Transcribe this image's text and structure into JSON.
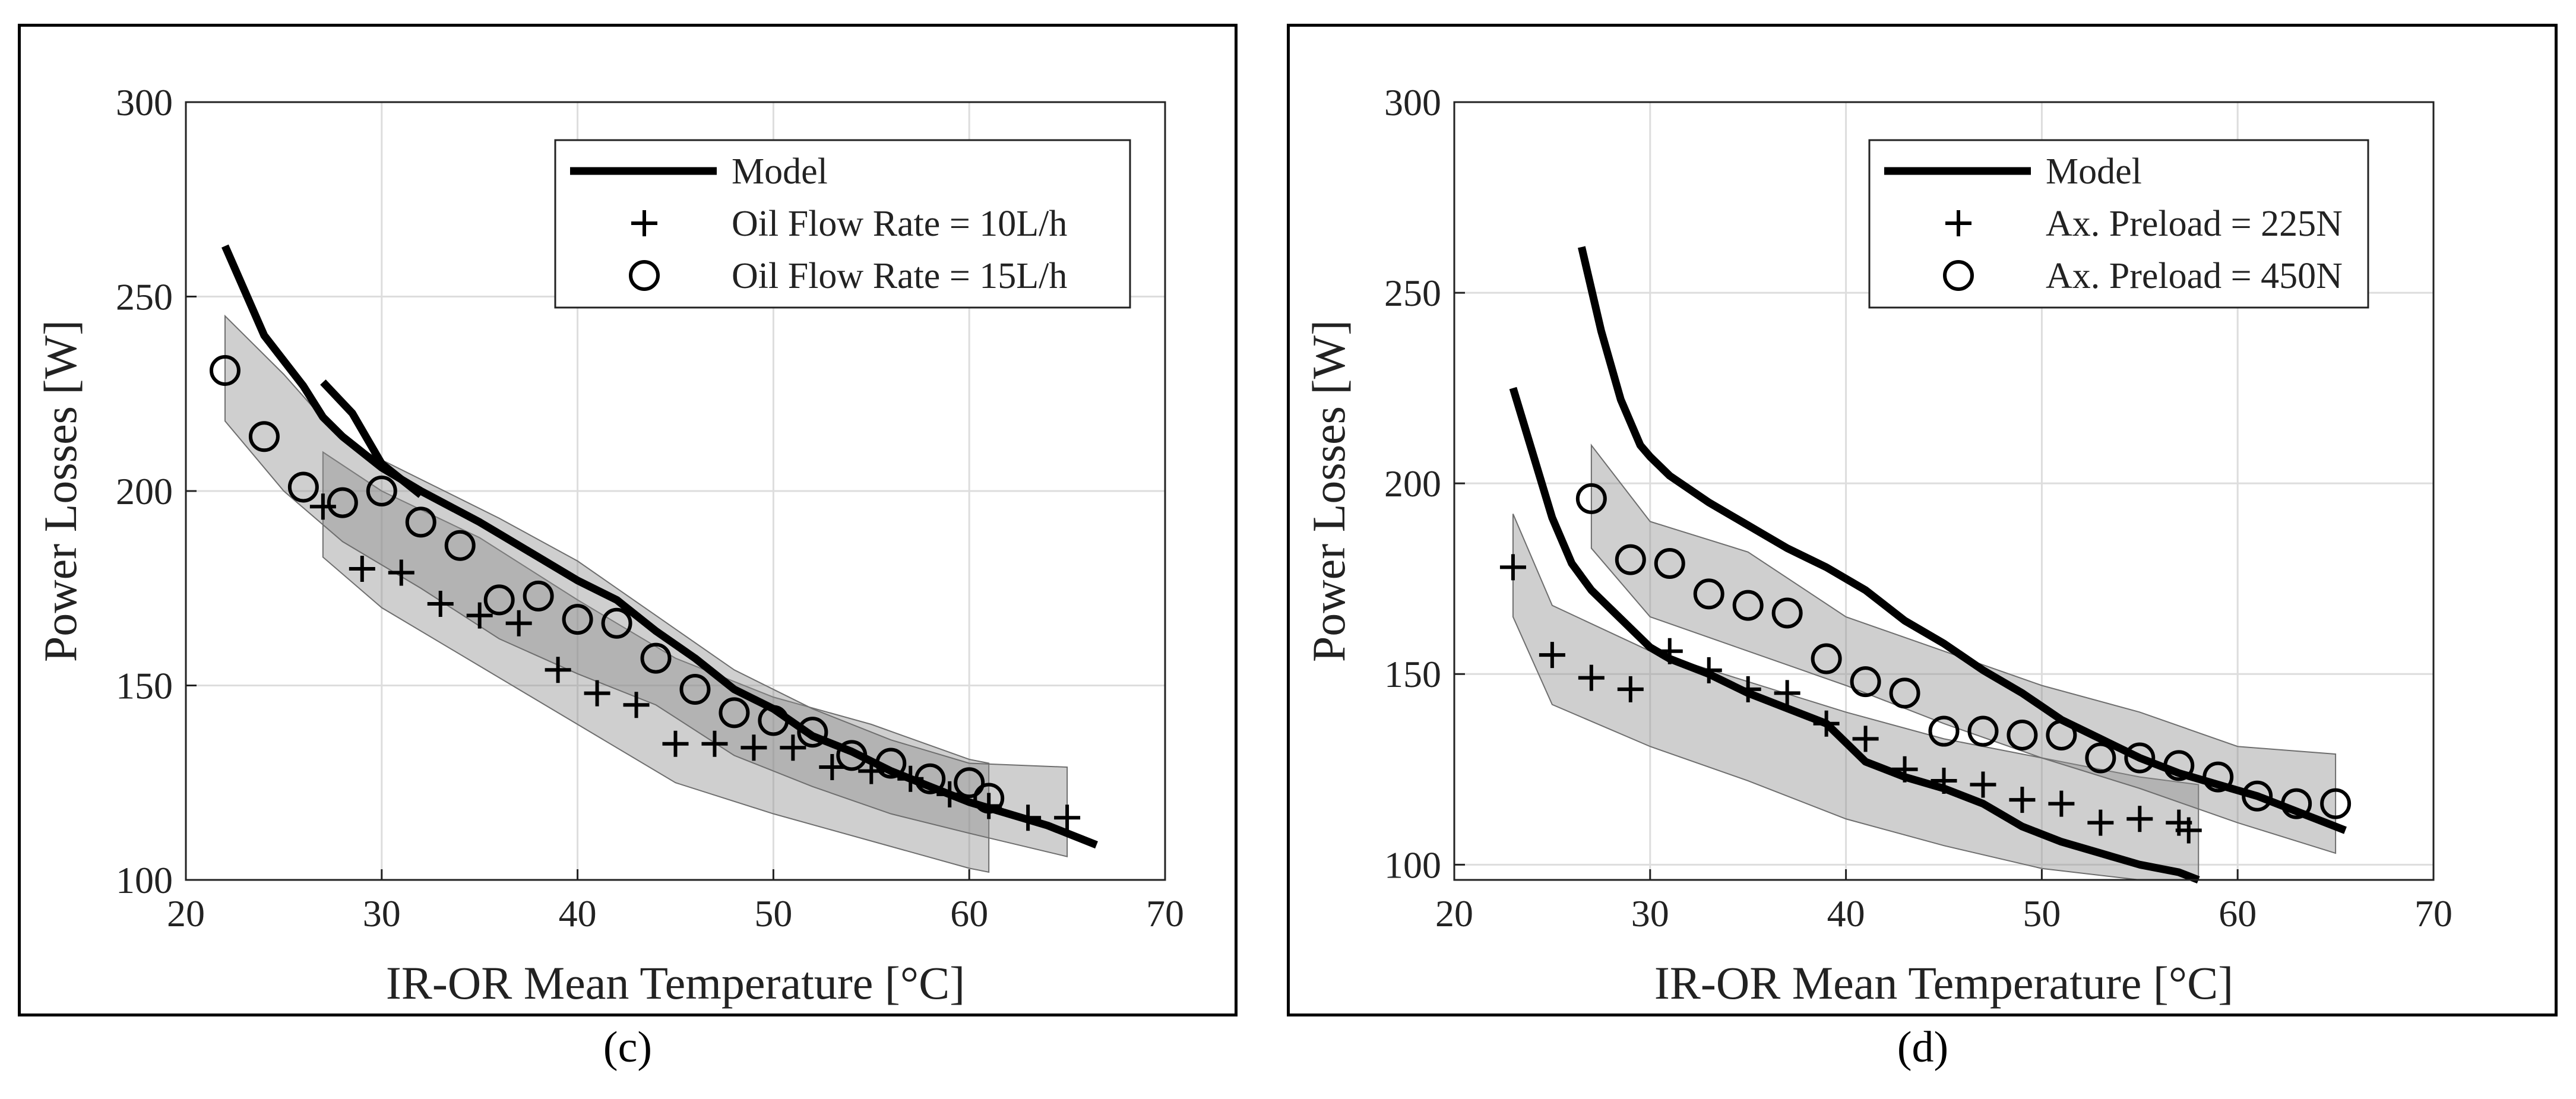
{
  "captions": {
    "c": "(c)",
    "d": "(d)"
  },
  "chart_data": [
    {
      "type": "line",
      "panel": "c",
      "xlabel": "IR-OR Mean Temperature [°C]",
      "ylabel": "Power Losses [W]",
      "xlim": [
        20,
        70
      ],
      "ylim": [
        100,
        300
      ],
      "xticks": [
        20,
        30,
        40,
        50,
        60,
        70
      ],
      "yticks": [
        100,
        150,
        200,
        250,
        300
      ],
      "grid": true,
      "legend_position": "top-right",
      "legend": [
        "Model",
        "Oil Flow Rate = 10L/h",
        "Oil Flow Rate = 15L/h"
      ],
      "bands": [
        {
          "name": "10L/h band",
          "x": [
            27,
            30,
            35,
            40,
            45,
            50,
            55,
            60,
            61
          ],
          "lower": [
            183,
            170,
            155,
            140,
            125,
            117,
            110,
            103,
            102
          ],
          "upper": [
            210,
            200,
            188,
            172,
            157,
            147,
            140,
            131,
            130
          ]
        },
        {
          "name": "15L/h band",
          "x": [
            22,
            25,
            28,
            32,
            36,
            40,
            44,
            48,
            52,
            56,
            60,
            65
          ],
          "lower": [
            218,
            200,
            187,
            175,
            162,
            153,
            145,
            132,
            124,
            117,
            112,
            106
          ],
          "upper": [
            245,
            230,
            213,
            203,
            193,
            182,
            168,
            154,
            144,
            136,
            130,
            129
          ]
        }
      ],
      "series": [
        {
          "name": "Model",
          "marker": "line",
          "x": [
            22,
            24,
            26,
            27,
            28,
            30,
            32,
            35,
            38,
            40,
            42,
            44,
            46,
            48,
            50,
            52,
            54,
            56,
            58,
            60,
            62,
            64,
            66.5
          ],
          "y": [
            263,
            240,
            227,
            219,
            214,
            206,
            200,
            192,
            183,
            177,
            172,
            164,
            157,
            149,
            144,
            137,
            133,
            128,
            124,
            120,
            117,
            114,
            109
          ]
        },
        {
          "name": "Model (10L/h)",
          "marker": "line",
          "x": [
            27,
            28.5,
            30,
            32
          ],
          "y": [
            228,
            220,
            207,
            199
          ]
        },
        {
          "name": "Oil Flow Rate = 10L/h",
          "marker": "+",
          "x": [
            27,
            29,
            31,
            33,
            35,
            37,
            39,
            41,
            43,
            45,
            47,
            49,
            51,
            53,
            55,
            57,
            59,
            61,
            63,
            65
          ],
          "y": [
            196,
            180,
            179,
            171,
            168,
            166,
            154,
            148,
            145,
            135,
            135,
            134,
            134,
            129,
            128,
            126,
            122,
            119,
            116,
            116
          ]
        },
        {
          "name": "Oil Flow Rate = 15L/h",
          "marker": "o",
          "x": [
            22,
            24,
            26,
            28,
            30,
            32,
            34,
            36,
            38,
            40,
            42,
            44,
            46,
            48,
            50,
            52,
            54,
            56,
            58,
            60,
            61
          ],
          "y": [
            231,
            214,
            201,
            197,
            200,
            192,
            186,
            172,
            173,
            167,
            166,
            157,
            149,
            143,
            141,
            138,
            132,
            130,
            126,
            125,
            121
          ]
        }
      ]
    },
    {
      "type": "line",
      "panel": "d",
      "xlabel": "IR-OR Mean Temperature [°C]",
      "ylabel": "Power Losses [W]",
      "xlim": [
        20,
        70
      ],
      "ylim": [
        96,
        300
      ],
      "xticks": [
        20,
        30,
        40,
        50,
        60,
        70
      ],
      "yticks": [
        100,
        150,
        200,
        250,
        300
      ],
      "grid": true,
      "legend_position": "top-right",
      "legend": [
        "Model",
        "Ax. Preload = 225N",
        "Ax. Preload = 450N"
      ],
      "bands": [
        {
          "name": "225N band",
          "x": [
            23,
            25,
            30,
            35,
            40,
            45,
            50,
            55,
            58
          ],
          "lower": [
            165,
            142,
            131,
            122,
            112,
            105,
            99,
            96,
            96
          ],
          "upper": [
            192,
            168,
            156,
            148,
            140,
            133,
            128,
            123,
            121
          ]
        },
        {
          "name": "450N band",
          "x": [
            27,
            30,
            35,
            40,
            45,
            50,
            55,
            60,
            65
          ],
          "lower": [
            183,
            165,
            156,
            147,
            137,
            128,
            120,
            111,
            103
          ],
          "upper": [
            210,
            190,
            182,
            165,
            156,
            147,
            140,
            131,
            129
          ]
        }
      ],
      "series": [
        {
          "name": "Model (450N)",
          "marker": "line",
          "x": [
            26.5,
            27.5,
            28.5,
            29.5,
            30,
            31,
            33,
            35,
            37,
            39,
            41,
            43,
            45,
            47,
            49,
            51,
            53,
            55,
            57,
            59,
            61,
            63,
            65.5
          ],
          "y": [
            262,
            240,
            222,
            210,
            207,
            202,
            195,
            189,
            183,
            178,
            172,
            164,
            158,
            151,
            145,
            138,
            133,
            128,
            124,
            121,
            118,
            114,
            109
          ]
        },
        {
          "name": "Model (225N)",
          "marker": "line",
          "x": [
            23,
            24,
            25,
            26,
            27,
            28,
            29,
            30,
            31,
            33,
            35,
            37,
            39,
            41,
            43,
            45,
            47,
            49,
            51,
            53,
            55,
            57,
            58
          ],
          "y": [
            225,
            208,
            191,
            179,
            172,
            167,
            162,
            157,
            154,
            150,
            145,
            141,
            137,
            127,
            123,
            120,
            116,
            110,
            106,
            103,
            100,
            98,
            96
          ]
        },
        {
          "name": "Ax. Preload = 225N",
          "marker": "+",
          "x": [
            23,
            25,
            27,
            29,
            31,
            33,
            35,
            37,
            39,
            41,
            43,
            45,
            47,
            49,
            51,
            53,
            55,
            57,
            57.5
          ],
          "y": [
            178,
            155,
            149,
            146,
            156,
            151,
            146,
            145,
            137,
            133,
            125,
            122,
            121,
            117,
            116,
            111,
            112,
            111,
            109
          ]
        },
        {
          "name": "Ax. Preload = 450N",
          "marker": "o",
          "x": [
            27,
            29,
            31,
            33,
            35,
            37,
            39,
            41,
            43,
            45,
            47,
            49,
            51,
            53,
            55,
            57,
            59,
            61,
            63,
            65
          ],
          "y": [
            196,
            180,
            179,
            171,
            168,
            166,
            154,
            148,
            145,
            135,
            135,
            134,
            134,
            128,
            128,
            126,
            123,
            118,
            116,
            116
          ]
        }
      ]
    }
  ]
}
